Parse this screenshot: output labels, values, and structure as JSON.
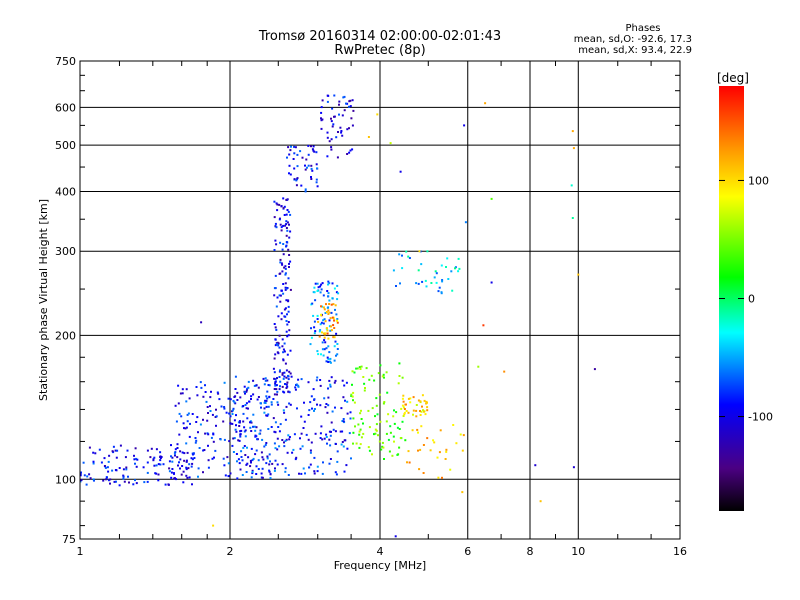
{
  "chart_data": {
    "type": "scatter",
    "title": "Tromsø 20160314 02:00:00-02:01:43",
    "subtitle": "RwPretec (8p)",
    "stats": {
      "heading": "Phases",
      "line_o": "mean, sd,O: -92.6, 17.3",
      "line_x": "mean, sd,X:  93.4, 22.9"
    },
    "xlabel": "Frequency [MHz]",
    "ylabel": "Stationary phase Virtual Height [km]",
    "x_scale": "log",
    "y_scale": "log",
    "xlim": [
      1,
      16
    ],
    "ylim": [
      75,
      750
    ],
    "xticks": [
      1,
      2,
      4,
      6,
      8,
      10,
      16
    ],
    "xtick_labels": [
      "1",
      "2",
      "4",
      "6",
      "8",
      "10",
      "16"
    ],
    "yticks": [
      75,
      100,
      200,
      300,
      400,
      500,
      600,
      750
    ],
    "ytick_labels": [
      "75",
      "100",
      "200",
      "300",
      "400",
      "500",
      "600",
      "750"
    ],
    "grid": true,
    "colorbar": {
      "label": "[deg]",
      "range": [
        -180,
        180
      ],
      "ticks": [
        100,
        0,
        -100
      ],
      "tick_labels": [
        "100",
        "0",
        "-100"
      ],
      "colormap": "rainbow (black → purple → blue → cyan → green → yellow → red)"
    },
    "clusters": [
      {
        "x_range": [
          1.0,
          1.7
        ],
        "y_range": [
          97,
          118
        ],
        "phase": -95,
        "n": 140
      },
      {
        "x_range": [
          1.55,
          2.5
        ],
        "y_range": [
          100,
          160
        ],
        "phase": -90,
        "n": 200
      },
      {
        "x_range": [
          2.0,
          3.5
        ],
        "y_range": [
          102,
          165
        ],
        "phase": -85,
        "n": 260
      },
      {
        "x_range": [
          2.45,
          2.65
        ],
        "y_range": [
          150,
          390
        ],
        "phase": -100,
        "n": 170
      },
      {
        "x_range": [
          2.6,
          3.0
        ],
        "y_range": [
          400,
          500
        ],
        "phase": -95,
        "n": 50
      },
      {
        "x_range": [
          3.0,
          3.55
        ],
        "y_range": [
          460,
          640
        ],
        "phase": -100,
        "n": 55
      },
      {
        "x_range": [
          2.9,
          3.3
        ],
        "y_range": [
          175,
          260
        ],
        "phase": -60,
        "n": 90
      },
      {
        "x_range": [
          3.0,
          3.3
        ],
        "y_range": [
          195,
          235
        ],
        "phase": 120,
        "n": 40
      },
      {
        "x_range": [
          3.5,
          4.5
        ],
        "y_range": [
          110,
          175
        ],
        "phase": 40,
        "n": 100
      },
      {
        "x_range": [
          4.4,
          5.0
        ],
        "y_range": [
          135,
          150
        ],
        "phase": 100,
        "n": 40
      },
      {
        "x_range": [
          4.2,
          5.8
        ],
        "y_range": [
          245,
          300
        ],
        "phase": -40,
        "n": 40
      },
      {
        "x_range": [
          4.5,
          5.9
        ],
        "y_range": [
          100,
          130
        ],
        "phase": 110,
        "n": 30
      }
    ],
    "points": [
      {
        "x": 1.75,
        "y": 213,
        "phase": -120
      },
      {
        "x": 1.85,
        "y": 80,
        "phase": 100
      },
      {
        "x": 6.5,
        "y": 612,
        "phase": 120
      },
      {
        "x": 6.7,
        "y": 386,
        "phase": 40
      },
      {
        "x": 5.9,
        "y": 550,
        "phase": -100
      },
      {
        "x": 5.95,
        "y": 345,
        "phase": -60
      },
      {
        "x": 6.7,
        "y": 258,
        "phase": -100
      },
      {
        "x": 6.45,
        "y": 210,
        "phase": 160
      },
      {
        "x": 8.2,
        "y": 107,
        "phase": -110
      },
      {
        "x": 8.4,
        "y": 90,
        "phase": 110
      },
      {
        "x": 9.75,
        "y": 535,
        "phase": 120
      },
      {
        "x": 9.8,
        "y": 493,
        "phase": 120
      },
      {
        "x": 9.7,
        "y": 412,
        "phase": -20
      },
      {
        "x": 9.75,
        "y": 352,
        "phase": -10
      },
      {
        "x": 10.0,
        "y": 268,
        "phase": 110
      },
      {
        "x": 9.8,
        "y": 106,
        "phase": -110
      },
      {
        "x": 10.8,
        "y": 170,
        "phase": -130
      },
      {
        "x": 7.1,
        "y": 168,
        "phase": 130
      },
      {
        "x": 6.3,
        "y": 172,
        "phase": 60
      },
      {
        "x": 4.8,
        "y": 300,
        "phase": 100
      },
      {
        "x": 4.4,
        "y": 440,
        "phase": -100
      },
      {
        "x": 3.8,
        "y": 520,
        "phase": 110
      },
      {
        "x": 4.2,
        "y": 505,
        "phase": 70
      },
      {
        "x": 3.95,
        "y": 580,
        "phase": 100
      },
      {
        "x": 4.3,
        "y": 76,
        "phase": -100
      },
      {
        "x": 5.85,
        "y": 94,
        "phase": 110
      }
    ]
  }
}
